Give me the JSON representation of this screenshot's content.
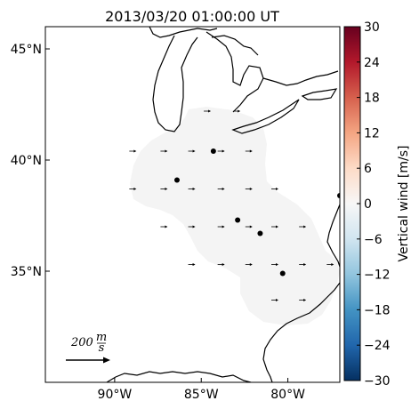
{
  "chart_data": {
    "type": "map",
    "title": "2013/03/20 01:00:00 UT",
    "xlim": [
      -94,
      -77
    ],
    "ylim": [
      30,
      46
    ],
    "lon_ticks": [
      {
        "value": -90,
        "label": "90°W"
      },
      {
        "value": -85,
        "label": "85°W"
      },
      {
        "value": -80,
        "label": "80°W"
      }
    ],
    "lat_ticks": [
      {
        "value": 45,
        "label": "45°N"
      },
      {
        "value": 40,
        "label": "40°N"
      },
      {
        "value": 35,
        "label": "35°N"
      }
    ],
    "colorbar": {
      "label": "Vertical wind [m/s]",
      "min": -30,
      "max": 30,
      "ticks": [
        {
          "value": 30,
          "label": "30"
        },
        {
          "value": 24,
          "label": "24"
        },
        {
          "value": 18,
          "label": "18"
        },
        {
          "value": 12,
          "label": "12"
        },
        {
          "value": 6,
          "label": "6"
        },
        {
          "value": 0,
          "label": "0"
        },
        {
          "value": -6,
          "label": "−6"
        },
        {
          "value": -12,
          "label": "−12"
        },
        {
          "value": -18,
          "label": "−18"
        },
        {
          "value": -24,
          "label": "−24"
        },
        {
          "value": -30,
          "label": "−30"
        }
      ]
    },
    "stations": [
      {
        "lon": -84.3,
        "lat": 40.4
      },
      {
        "lon": -86.4,
        "lat": 39.1
      },
      {
        "lon": -82.9,
        "lat": 37.3
      },
      {
        "lon": -81.6,
        "lat": 36.7
      },
      {
        "lon": -80.3,
        "lat": 34.9
      },
      {
        "lon": -77.0,
        "lat": 38.4
      }
    ],
    "wind_vectors": [
      {
        "lon": -84.7,
        "lat": 42.2
      },
      {
        "lon": -83.0,
        "lat": 42.2
      },
      {
        "lon": -89.0,
        "lat": 40.4
      },
      {
        "lon": -87.2,
        "lat": 40.4
      },
      {
        "lon": -85.6,
        "lat": 40.4
      },
      {
        "lon": -83.9,
        "lat": 40.4
      },
      {
        "lon": -82.3,
        "lat": 40.4
      },
      {
        "lon": -89.0,
        "lat": 38.7
      },
      {
        "lon": -87.2,
        "lat": 38.7
      },
      {
        "lon": -85.6,
        "lat": 38.7
      },
      {
        "lon": -83.9,
        "lat": 38.7
      },
      {
        "lon": -82.3,
        "lat": 38.7
      },
      {
        "lon": -80.8,
        "lat": 38.7
      },
      {
        "lon": -87.2,
        "lat": 37.0
      },
      {
        "lon": -85.6,
        "lat": 37.0
      },
      {
        "lon": -83.9,
        "lat": 37.0
      },
      {
        "lon": -82.3,
        "lat": 37.0
      },
      {
        "lon": -80.8,
        "lat": 37.0
      },
      {
        "lon": -79.2,
        "lat": 37.0
      },
      {
        "lon": -85.6,
        "lat": 35.3
      },
      {
        "lon": -83.9,
        "lat": 35.3
      },
      {
        "lon": -82.3,
        "lat": 35.3
      },
      {
        "lon": -80.8,
        "lat": 35.3
      },
      {
        "lon": -79.2,
        "lat": 35.3
      },
      {
        "lon": -77.6,
        "lat": 35.3
      },
      {
        "lon": -80.8,
        "lat": 33.7
      },
      {
        "lon": -79.2,
        "lat": 33.7
      }
    ],
    "scale_arrow": {
      "magnitude": 200,
      "unit_num": "m",
      "unit_den": "s"
    },
    "field_value_fill": "#f4f4f4"
  }
}
